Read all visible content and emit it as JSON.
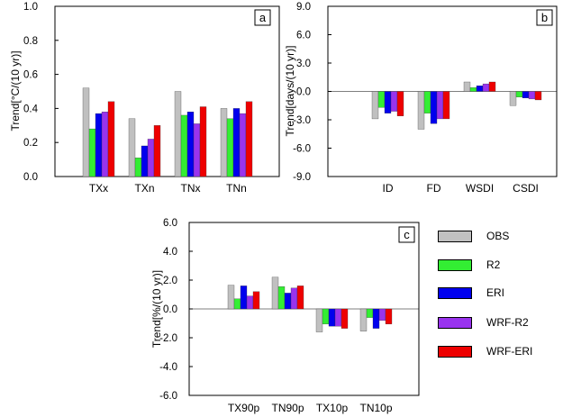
{
  "colors": {
    "OBS": "#c0c0c0",
    "R2": "#33ee33",
    "ERI": "#0000ee",
    "WRF-R2": "#9933ee",
    "WRF-ERI": "#ee0000"
  },
  "legend": {
    "items": [
      {
        "label": "OBS",
        "color": "#c0c0c0"
      },
      {
        "label": "R2",
        "color": "#33ee33"
      },
      {
        "label": "ERI",
        "color": "#0000ee"
      },
      {
        "label": "WRF-R2",
        "color": "#9933ee"
      },
      {
        "label": "WRF-ERI",
        "color": "#ee0000"
      }
    ]
  },
  "chart_data": [
    {
      "type": "bar",
      "panel_label": "a",
      "ylabel": "Trend[°C/(10 yr)]",
      "ylim": [
        0.0,
        1.0
      ],
      "yticks": [
        "0.0",
        "0.2",
        "0.4",
        "0.6",
        "0.8",
        "1.0"
      ],
      "categories": [
        "TXx",
        "TXn",
        "TNx",
        "TNn"
      ],
      "series": [
        {
          "name": "OBS",
          "values": [
            0.52,
            0.34,
            0.5,
            0.4
          ]
        },
        {
          "name": "R2",
          "values": [
            0.28,
            0.11,
            0.36,
            0.34
          ]
        },
        {
          "name": "ERI",
          "values": [
            0.37,
            0.18,
            0.38,
            0.4
          ]
        },
        {
          "name": "WRF-R2",
          "values": [
            0.38,
            0.22,
            0.31,
            0.37
          ]
        },
        {
          "name": "WRF-ERI",
          "values": [
            0.44,
            0.3,
            0.41,
            0.44
          ]
        }
      ]
    },
    {
      "type": "bar",
      "panel_label": "b",
      "ylabel": "Trend[days/(10 yr)]",
      "ylim": [
        -9.0,
        9.0
      ],
      "yticks": [
        "-9.0",
        "-6.0",
        "-3.0",
        "0.0",
        "3.0",
        "6.0",
        "9.0"
      ],
      "categories": [
        "ID",
        "FD",
        "WSDI",
        "CSDI"
      ],
      "series": [
        {
          "name": "OBS",
          "values": [
            -2.9,
            -4.0,
            1.0,
            -1.5
          ]
        },
        {
          "name": "R2",
          "values": [
            -1.7,
            -2.3,
            0.4,
            -0.6
          ]
        },
        {
          "name": "ERI",
          "values": [
            -2.3,
            -3.4,
            0.6,
            -0.7
          ]
        },
        {
          "name": "WRF-R2",
          "values": [
            -2.1,
            -2.9,
            0.8,
            -0.8
          ]
        },
        {
          "name": "WRF-ERI",
          "values": [
            -2.6,
            -2.9,
            1.0,
            -0.9
          ]
        }
      ]
    },
    {
      "type": "bar",
      "panel_label": "c",
      "ylabel": "Trend[%/(10 yr)]",
      "ylim": [
        -6.0,
        6.0
      ],
      "yticks": [
        "-6.0",
        "-4.0",
        "-2.0",
        "0.0",
        "2.0",
        "4.0",
        "6.0"
      ],
      "categories": [
        "TX90p",
        "TN90p",
        "TX10p",
        "TN10p"
      ],
      "series": [
        {
          "name": "OBS",
          "values": [
            1.65,
            2.2,
            -1.6,
            -1.55
          ]
        },
        {
          "name": "R2",
          "values": [
            0.7,
            1.55,
            -1.05,
            -0.6
          ]
        },
        {
          "name": "ERI",
          "values": [
            1.6,
            1.1,
            -1.2,
            -1.35
          ]
        },
        {
          "name": "WRF-R2",
          "values": [
            0.9,
            1.45,
            -1.2,
            -0.8
          ]
        },
        {
          "name": "WRF-ERI",
          "values": [
            1.2,
            1.6,
            -1.35,
            -1.05
          ]
        }
      ]
    }
  ]
}
